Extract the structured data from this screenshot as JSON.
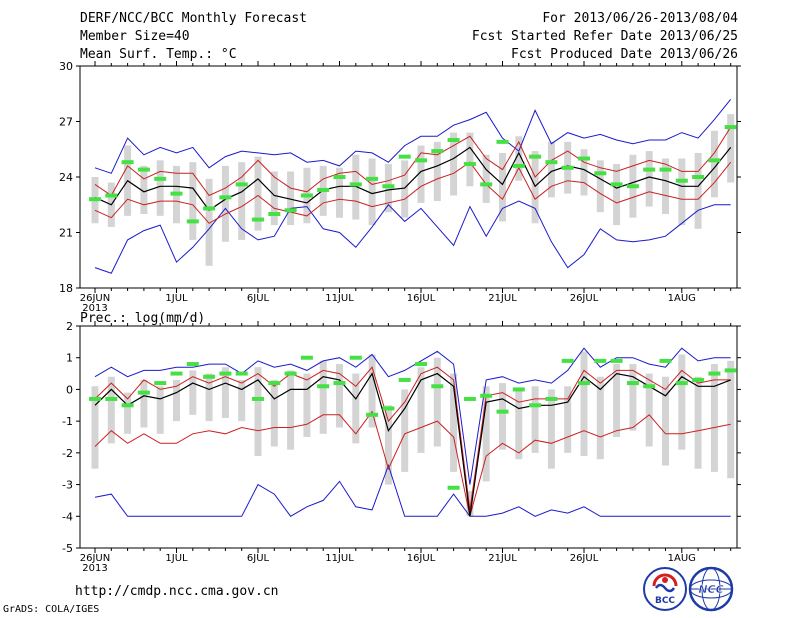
{
  "header": {
    "title": "DERF/NCC/BCC Monthly Forecast",
    "member_size": "Member Size=40",
    "variable": "Mean Surf. Temp.: °C",
    "period": "For 2013/06/26-2013/08/04",
    "fcst_started": "Fcst Started Refer Date 2013/06/25",
    "fcst_produced": "Fcst Produced Date 2013/06/26"
  },
  "footer": {
    "url": "http://cmdp.ncc.cma.gov.cn",
    "credit": "GrADS: COLA/IGES",
    "logo_left_text": "BCC",
    "logo_right_text": "NCC"
  },
  "colors": {
    "envelope": "#1a1acc",
    "quartile": "#cc2020",
    "median": "#000000",
    "ensemble_bar": "#d4d4d4",
    "observation_mark": "#44e044"
  },
  "chart_data": [
    {
      "type": "line",
      "title": "Mean Surf. Temp.: °C",
      "ylim": [
        18,
        30
      ],
      "yticks": [
        "18",
        "21",
        "24",
        "27",
        "30"
      ],
      "ytick_values": [
        18,
        21,
        24,
        27,
        30
      ],
      "x_day_count": 40,
      "xtick_labels": [
        "26JUN",
        "1JUL",
        "6JUL",
        "11JUL",
        "16JUL",
        "21JUL",
        "26JUL",
        "1AUG"
      ],
      "xtick_day_index": [
        0,
        5,
        10,
        15,
        20,
        25,
        30,
        36
      ],
      "year_label": "2013",
      "series": [
        {
          "name": "max",
          "values": [
            24.5,
            24.2,
            26.1,
            25.2,
            25.6,
            25.3,
            25.6,
            24.5,
            25.1,
            25.4,
            25.3,
            25.2,
            25.3,
            24.8,
            24.9,
            24.6,
            25.4,
            25.3,
            24.8,
            25.7,
            26.2,
            26.2,
            26.8,
            27.1,
            27.5,
            26.1,
            25.4,
            27.6,
            25.8,
            26.4,
            26.1,
            26.3,
            26.0,
            25.8,
            26.0,
            26.0,
            26.4,
            26.1,
            27.1,
            28.2
          ]
        },
        {
          "name": "upper",
          "values": [
            23.6,
            23.0,
            24.6,
            23.9,
            24.3,
            24.2,
            24.2,
            23.0,
            23.4,
            24.0,
            24.9,
            24.0,
            23.4,
            23.2,
            23.9,
            24.2,
            24.3,
            23.6,
            23.8,
            24.1,
            25.3,
            25.2,
            25.7,
            26.2,
            25.0,
            24.4,
            25.9,
            24.0,
            24.9,
            25.4,
            24.8,
            24.5,
            24.3,
            24.6,
            24.9,
            24.7,
            24.3,
            24.3,
            25.3,
            26.7
          ]
        },
        {
          "name": "median",
          "values": [
            22.9,
            22.5,
            23.8,
            23.2,
            23.5,
            23.5,
            23.4,
            22.2,
            22.8,
            23.2,
            23.9,
            23.0,
            22.8,
            22.6,
            23.3,
            23.5,
            23.5,
            23.1,
            23.3,
            23.4,
            24.3,
            24.6,
            25.0,
            25.6,
            24.4,
            23.6,
            25.3,
            23.5,
            24.3,
            24.6,
            24.4,
            23.9,
            23.4,
            23.7,
            24.0,
            23.8,
            23.5,
            23.5,
            24.5,
            25.6
          ]
        },
        {
          "name": "lower",
          "values": [
            22.2,
            21.8,
            22.8,
            22.5,
            22.7,
            22.7,
            22.5,
            21.5,
            22.0,
            22.4,
            23.0,
            22.3,
            22.1,
            21.9,
            22.6,
            22.8,
            22.7,
            22.4,
            22.6,
            22.8,
            23.5,
            23.9,
            24.2,
            24.8,
            23.6,
            22.8,
            24.5,
            22.8,
            23.5,
            23.8,
            23.7,
            23.1,
            22.6,
            22.9,
            23.2,
            23.0,
            22.8,
            22.8,
            23.7,
            24.8
          ]
        },
        {
          "name": "min",
          "values": [
            19.1,
            18.8,
            20.6,
            21.1,
            21.4,
            19.4,
            20.2,
            21.2,
            22.3,
            21.2,
            20.6,
            20.8,
            22.3,
            22.4,
            21.2,
            21.0,
            20.2,
            21.3,
            22.5,
            21.6,
            22.3,
            21.3,
            20.3,
            22.4,
            20.8,
            22.3,
            22.7,
            22.3,
            20.5,
            19.1,
            19.8,
            21.2,
            20.6,
            20.5,
            20.6,
            20.8,
            21.5,
            22.2,
            22.5,
            22.5
          ]
        },
        {
          "name": "ensemble_top",
          "values": [
            24.0,
            23.7,
            25.7,
            24.6,
            24.9,
            24.6,
            24.8,
            23.9,
            24.6,
            24.8,
            25.1,
            24.3,
            24.3,
            24.5,
            24.6,
            24.5,
            25.2,
            25.0,
            24.7,
            24.9,
            25.7,
            25.9,
            26.4,
            26.4,
            25.2,
            25.3,
            26.2,
            25.4,
            25.9,
            25.9,
            25.5,
            24.9,
            24.7,
            25.2,
            25.4,
            25.0,
            25.0,
            25.3,
            26.5,
            27.4
          ]
        },
        {
          "name": "ensemble_bottom",
          "values": [
            21.5,
            21.3,
            21.9,
            22.0,
            21.9,
            21.5,
            20.6,
            19.2,
            20.5,
            20.6,
            21.1,
            21.4,
            21.4,
            21.5,
            21.9,
            21.8,
            21.7,
            21.4,
            22.1,
            21.8,
            22.6,
            22.7,
            23.0,
            23.5,
            22.6,
            21.6,
            23.8,
            21.5,
            22.9,
            23.1,
            23.0,
            22.1,
            21.4,
            21.8,
            22.4,
            22.0,
            21.4,
            21.2,
            22.9,
            23.7
          ]
        },
        {
          "name": "observation",
          "values": [
            22.8,
            23.0,
            24.8,
            24.4,
            23.9,
            23.1,
            21.6,
            22.3,
            22.9,
            23.6,
            21.7,
            22.0,
            22.2,
            23.0,
            23.3,
            24.0,
            23.6,
            23.9,
            23.5,
            25.1,
            24.9,
            25.4,
            26.0,
            24.7,
            23.6,
            25.9,
            24.6,
            25.1,
            24.8,
            24.5,
            25.0,
            24.2,
            23.6,
            23.5,
            24.4,
            24.4,
            23.8,
            24.0,
            24.9,
            26.7
          ]
        }
      ]
    },
    {
      "type": "line",
      "title": "Prec.: log(mm/d)",
      "ylim": [
        -5,
        2
      ],
      "yticks": [
        "-5",
        "-4",
        "-3",
        "-2",
        "-1",
        "0",
        "1",
        "2"
      ],
      "ytick_values": [
        -5,
        -4,
        -3,
        -2,
        -1,
        0,
        1,
        2
      ],
      "x_day_count": 40,
      "xtick_labels": [
        "26JUN",
        "1JUL",
        "6JUL",
        "11JUL",
        "16JUL",
        "21JUL",
        "26JUL",
        "1AUG"
      ],
      "xtick_day_index": [
        0,
        5,
        10,
        15,
        20,
        25,
        30,
        36
      ],
      "year_label": "2013",
      "series": [
        {
          "name": "max",
          "values": [
            0.4,
            0.7,
            0.4,
            0.6,
            0.6,
            0.7,
            0.7,
            0.8,
            0.8,
            0.5,
            0.9,
            0.7,
            0.8,
            0.6,
            0.9,
            1.0,
            0.7,
            1.1,
            0.4,
            0.6,
            0.9,
            1.2,
            0.8,
            -3.0,
            0.3,
            0.4,
            0.2,
            0.3,
            0.2,
            0.6,
            1.3,
            0.7,
            1.0,
            1.0,
            0.8,
            0.7,
            1.3,
            0.9,
            1.0,
            1.0
          ]
        },
        {
          "name": "upper",
          "values": [
            -0.3,
            0.2,
            -0.3,
            0.3,
            0.0,
            0.1,
            0.4,
            0.2,
            0.4,
            0.2,
            0.5,
            0.1,
            0.5,
            0.3,
            0.6,
            0.5,
            0.1,
            0.7,
            -1.0,
            -0.4,
            0.5,
            0.7,
            0.3,
            -3.8,
            -0.2,
            -0.1,
            -0.4,
            -0.3,
            -0.3,
            -0.3,
            0.6,
            0.2,
            0.6,
            0.6,
            0.3,
            0.0,
            0.6,
            0.2,
            0.3,
            0.3
          ]
        },
        {
          "name": "median",
          "values": [
            -0.5,
            0.0,
            -0.5,
            -0.2,
            -0.3,
            -0.1,
            0.2,
            0.0,
            0.2,
            0.0,
            0.3,
            -0.3,
            0.0,
            0.0,
            0.4,
            0.3,
            -0.3,
            0.5,
            -1.3,
            -0.6,
            0.3,
            0.5,
            0.1,
            -4.0,
            -0.4,
            -0.3,
            -0.6,
            -0.5,
            -0.5,
            -0.4,
            0.4,
            0.0,
            0.5,
            0.4,
            0.1,
            -0.2,
            0.4,
            0.1,
            0.1,
            0.3
          ]
        },
        {
          "name": "lower",
          "values": [
            -0.8,
            -0.2,
            -0.6,
            -0.4,
            -0.4,
            -0.4,
            -0.3,
            -0.2,
            0.0,
            -0.2,
            0.0,
            -0.6,
            -0.3,
            -0.3,
            -0.1,
            -0.1,
            -0.7,
            0.3,
            -1.5,
            -1.0,
            0.1,
            0.4,
            0.0,
            -4.0,
            -0.6,
            -0.4,
            -0.8,
            -0.7,
            -0.7,
            -0.6,
            0.0,
            -0.2,
            0.3,
            0.3,
            0.0,
            -0.4,
            0.2,
            0.0,
            0.0,
            0.1
          ]
        },
        {
          "name": "min",
          "values": [
            -1.8,
            -1.3,
            -1.7,
            -1.4,
            -1.7,
            -1.7,
            -1.4,
            -1.3,
            -1.4,
            -1.2,
            -1.3,
            -1.2,
            -1.2,
            -1.1,
            -0.8,
            -0.8,
            -1.4,
            -0.7,
            -2.5,
            -1.4,
            -1.2,
            -1.0,
            -1.5,
            -4.0,
            -2.1,
            -1.7,
            -2.0,
            -1.6,
            -1.7,
            -1.5,
            -1.3,
            -1.5,
            -1.3,
            -1.2,
            -0.8,
            -1.4,
            -1.4,
            -1.3,
            -1.2,
            -1.1
          ]
        },
        {
          "name": "lower_extreme",
          "values": [
            -3.4,
            -3.3,
            -4.0,
            -4.0,
            -4.0,
            -4.0,
            -4.0,
            -4.0,
            -4.0,
            -4.0,
            -3.0,
            -3.3,
            -4.0,
            -3.7,
            -3.5,
            -2.9,
            -3.7,
            -3.8,
            -2.4,
            -4.0,
            -4.0,
            -4.0,
            -3.3,
            -4.0,
            -4.0,
            -3.9,
            -3.7,
            -4.0,
            -3.8,
            -3.9,
            -3.7,
            -4.0,
            -4.0,
            -4.0,
            -4.0,
            -4.0,
            -4.0,
            -4.0,
            -4.0,
            -4.0
          ]
        },
        {
          "name": "ensemble_top",
          "values": [
            0.1,
            0.4,
            -0.1,
            0.3,
            0.1,
            0.3,
            0.6,
            0.5,
            0.7,
            0.3,
            0.7,
            0.3,
            0.6,
            0.5,
            0.9,
            0.8,
            0.5,
            1.1,
            -0.5,
            0.0,
            0.7,
            1.0,
            0.5,
            -3.2,
            0.1,
            0.2,
            0.0,
            0.1,
            0.0,
            0.1,
            1.2,
            0.4,
            0.8,
            0.8,
            0.5,
            0.4,
            1.1,
            0.4,
            0.8,
            0.9
          ]
        },
        {
          "name": "ensemble_bottom",
          "values": [
            -2.5,
            -1.7,
            -1.4,
            -1.2,
            -1.4,
            -1.0,
            -0.8,
            -1.0,
            -0.9,
            -1.0,
            -2.1,
            -1.8,
            -1.9,
            -1.5,
            -1.4,
            -1.2,
            -1.7,
            -1.2,
            -3.0,
            -2.6,
            -2.0,
            -1.8,
            -2.6,
            -4.0,
            -2.9,
            -1.9,
            -2.2,
            -2.0,
            -2.5,
            -2.0,
            -2.1,
            -2.2,
            -1.5,
            -1.3,
            -1.8,
            -2.4,
            -1.9,
            -2.5,
            -2.6,
            -2.8
          ]
        },
        {
          "name": "observation",
          "values": [
            -0.3,
            -0.3,
            -0.5,
            -0.1,
            0.2,
            0.5,
            0.8,
            0.4,
            0.5,
            0.5,
            -0.3,
            0.2,
            0.5,
            1.0,
            0.1,
            0.2,
            1.0,
            -0.8,
            -0.6,
            0.3,
            0.8,
            0.1,
            -3.1,
            -0.3,
            -0.2,
            -0.7,
            0.0,
            -0.5,
            -0.3,
            0.9,
            0.2,
            0.9,
            0.9,
            0.2,
            0.1,
            0.9,
            0.2,
            0.3,
            0.5,
            0.6
          ]
        }
      ]
    }
  ]
}
